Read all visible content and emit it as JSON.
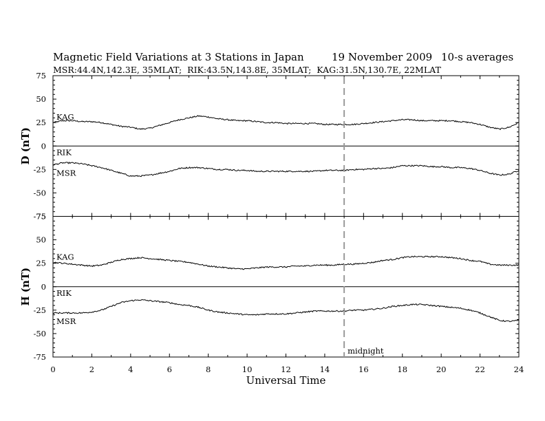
{
  "chart_data": {
    "type": "line",
    "title": "Magnetic Field Variations at 3 Stations in Japan",
    "date": "19 November 2009",
    "averaging": "10-s averages",
    "subtitle": "MSR:44.4N,142.3E, 35MLAT;  RIK:43.5N,143.8E, 35MLAT;  KAG:31.5N,130.7E, 22MLAT",
    "xlabel": "Universal Time",
    "xlim": [
      0,
      24
    ],
    "xticks": [
      "0",
      "2",
      "4",
      "6",
      "8",
      "10",
      "12",
      "14",
      "16",
      "18",
      "20",
      "22",
      "24"
    ],
    "annotation": {
      "x": 15,
      "label": "midnight",
      "style": "dashed vertical line"
    },
    "grid": false,
    "panels": [
      {
        "ylabel": "D (nT)",
        "ylim": [
          -75,
          75
        ],
        "yticks": [
          "75",
          "50",
          "25",
          "0",
          "-25",
          "-50",
          "-75"
        ],
        "series": [
          {
            "name": "KAG",
            "x": [
              0,
              0.5,
              1,
              1.5,
              2,
              2.5,
              3,
              3.5,
              4,
              4.5,
              5,
              5.5,
              6,
              6.5,
              7,
              7.5,
              8,
              8.5,
              9,
              9.5,
              10,
              10.5,
              11,
              11.5,
              12,
              12.5,
              13,
              13.5,
              14,
              14.5,
              15,
              15.5,
              16,
              16.5,
              17,
              17.5,
              18,
              18.5,
              19,
              19.5,
              20,
              20.5,
              21,
              21.5,
              22,
              22.5,
              23,
              23.5,
              24
            ],
            "values": [
              25,
              27,
              27,
              26,
              26,
              25,
              23,
              21,
              20,
              18,
              19,
              22,
              25,
              28,
              30,
              32,
              31,
              29,
              28,
              27,
              27,
              26,
              25,
              25,
              24,
              24,
              24,
              24,
              23,
              23,
              23,
              23,
              24,
              25,
              26,
              27,
              28,
              28,
              27,
              27,
              27,
              27,
              26,
              25,
              23,
              20,
              18,
              20,
              25
            ]
          },
          {
            "name": "RIK",
            "x": [
              0,
              24
            ],
            "values": [
              0,
              0
            ]
          },
          {
            "name": "MSR",
            "x": [
              0,
              0.5,
              1,
              1.5,
              2,
              2.5,
              3,
              3.5,
              4,
              4.5,
              5,
              5.5,
              6,
              6.5,
              7,
              7.5,
              8,
              8.5,
              9,
              9.5,
              10,
              10.5,
              11,
              11.5,
              12,
              12.5,
              13,
              13.5,
              14,
              14.5,
              15,
              15.5,
              16,
              16.5,
              17,
              17.5,
              18,
              18.5,
              19,
              19.5,
              20,
              20.5,
              21,
              21.5,
              22,
              22.5,
              23,
              23.5,
              24
            ],
            "values": [
              -20,
              -18,
              -18,
              -19,
              -21,
              -23,
              -26,
              -29,
              -32,
              -32,
              -31,
              -29,
              -27,
              -24,
              -23,
              -23,
              -24,
              -25,
              -25,
              -26,
              -26,
              -27,
              -27,
              -27,
              -27,
              -27,
              -27,
              -27,
              -26,
              -26,
              -26,
              -25,
              -25,
              -24,
              -24,
              -23,
              -21,
              -21,
              -21,
              -22,
              -22,
              -23,
              -23,
              -24,
              -26,
              -29,
              -31,
              -30,
              -26
            ]
          }
        ]
      },
      {
        "ylabel": "H (nT)",
        "ylim": [
          -75,
          75
        ],
        "yticks": [
          "75",
          "50",
          "25",
          "0",
          "-25",
          "-50",
          "-75"
        ],
        "series": [
          {
            "name": "KAG",
            "x": [
              0,
              0.5,
              1,
              1.5,
              2,
              2.5,
              3,
              3.5,
              4,
              4.5,
              5,
              5.5,
              6,
              6.5,
              7,
              7.5,
              8,
              8.5,
              9,
              9.5,
              10,
              10.5,
              11,
              11.5,
              12,
              12.5,
              13,
              13.5,
              14,
              14.5,
              15,
              15.5,
              16,
              16.5,
              17,
              17.5,
              18,
              18.5,
              19,
              19.5,
              20,
              20.5,
              21,
              21.5,
              22,
              22.5,
              23,
              23.5,
              24
            ],
            "values": [
              26,
              25,
              24,
              23,
              22,
              23,
              26,
              29,
              30,
              31,
              30,
              29,
              28,
              27,
              26,
              24,
              22,
              21,
              20,
              19,
              19,
              20,
              21,
              21,
              21,
              22,
              22,
              23,
              23,
              23,
              24,
              24,
              25,
              26,
              28,
              29,
              31,
              32,
              32,
              32,
              32,
              31,
              30,
              28,
              27,
              24,
              23,
              23,
              23
            ]
          },
          {
            "name": "RIK",
            "x": [
              0,
              24
            ],
            "values": [
              0,
              0
            ]
          },
          {
            "name": "MSR",
            "x": [
              0,
              0.5,
              1,
              1.5,
              2,
              2.5,
              3,
              3.5,
              4,
              4.5,
              5,
              5.5,
              6,
              6.5,
              7,
              7.5,
              8,
              8.5,
              9,
              9.5,
              10,
              10.5,
              11,
              11.5,
              12,
              12.5,
              13,
              13.5,
              14,
              14.5,
              15,
              15.5,
              16,
              16.5,
              17,
              17.5,
              18,
              18.5,
              19,
              19.5,
              20,
              20.5,
              21,
              21.5,
              22,
              22.5,
              23,
              23.5,
              24
            ],
            "values": [
              -28,
              -28,
              -28,
              -28,
              -27,
              -25,
              -21,
              -17,
              -15,
              -14,
              -15,
              -16,
              -17,
              -19,
              -20,
              -22,
              -25,
              -27,
              -28,
              -29,
              -30,
              -30,
              -29,
              -29,
              -29,
              -28,
              -27,
              -26,
              -26,
              -26,
              -26,
              -25,
              -25,
              -24,
              -23,
              -21,
              -20,
              -19,
              -19,
              -20,
              -21,
              -22,
              -23,
              -25,
              -28,
              -32,
              -36,
              -37,
              -36
            ]
          }
        ]
      }
    ]
  }
}
